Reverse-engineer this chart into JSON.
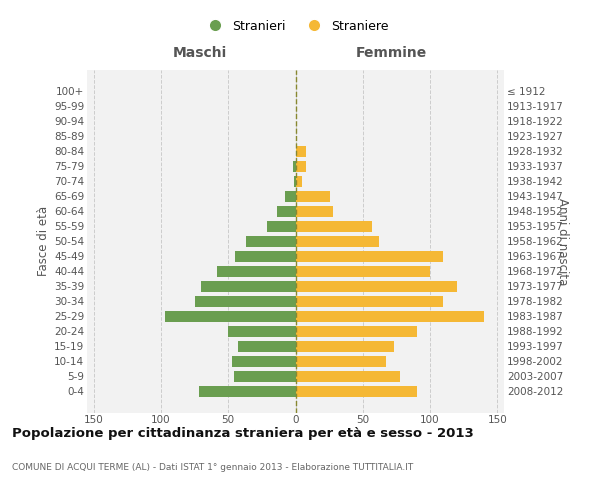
{
  "age_groups": [
    "100+",
    "95-99",
    "90-94",
    "85-89",
    "80-84",
    "75-79",
    "70-74",
    "65-69",
    "60-64",
    "55-59",
    "50-54",
    "45-49",
    "40-44",
    "35-39",
    "30-34",
    "25-29",
    "20-24",
    "15-19",
    "10-14",
    "5-9",
    "0-4"
  ],
  "birth_years": [
    "≤ 1912",
    "1913-1917",
    "1918-1922",
    "1923-1927",
    "1928-1932",
    "1933-1937",
    "1938-1942",
    "1943-1947",
    "1948-1952",
    "1953-1957",
    "1958-1962",
    "1963-1967",
    "1968-1972",
    "1973-1977",
    "1978-1982",
    "1983-1987",
    "1988-1992",
    "1993-1997",
    "1998-2002",
    "2003-2007",
    "2008-2012"
  ],
  "maschi": [
    0,
    0,
    0,
    0,
    0,
    2,
    1,
    8,
    14,
    21,
    37,
    45,
    58,
    70,
    75,
    97,
    50,
    43,
    47,
    46,
    72
  ],
  "femmine": [
    0,
    0,
    0,
    0,
    8,
    8,
    5,
    26,
    28,
    57,
    62,
    110,
    100,
    120,
    110,
    140,
    90,
    73,
    67,
    78,
    90
  ],
  "color_maschi": "#6a9e50",
  "color_femmine": "#f5b835",
  "color_center_line": "#888830",
  "bg_color": "#f2f2f2",
  "title": "Popolazione per cittadinanza straniera per età e sesso - 2013",
  "subtitle": "COMUNE DI ACQUI TERME (AL) - Dati ISTAT 1° gennaio 2013 - Elaborazione TUTTITALIA.IT",
  "header_left": "Maschi",
  "header_right": "Femmine",
  "ylabel_left": "Fasce di età",
  "ylabel_right": "Anni di nascita",
  "legend_maschi": "Stranieri",
  "legend_femmine": "Straniere",
  "xlim": 155,
  "bar_height": 0.75,
  "grid_color": "#cccccc",
  "title_fontsize": 9.5,
  "subtitle_fontsize": 6.5,
  "header_fontsize": 10,
  "tick_fontsize": 7.5,
  "legend_fontsize": 9,
  "ylabel_fontsize": 8.5,
  "axleft": 0.145,
  "axbottom": 0.175,
  "axwidth": 0.695,
  "axheight": 0.685
}
